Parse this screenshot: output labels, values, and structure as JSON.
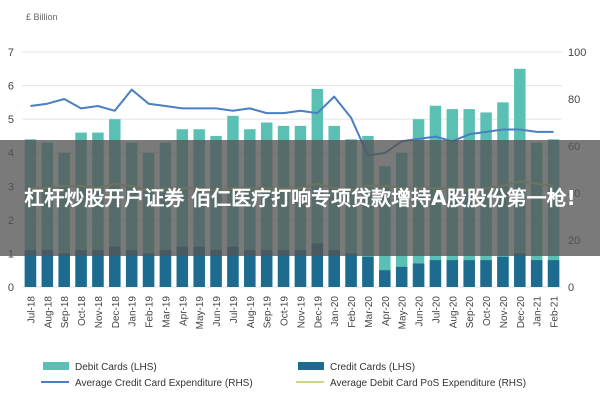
{
  "overlay": {
    "headline": "杠杆炒股开户证券 佰仁医疗打响专项贷款增持A股股份第一枪!"
  },
  "chart_data": {
    "type": "bar",
    "left_axis_unit": "£ Billion",
    "left_ticks": [
      0,
      1,
      2,
      3,
      4,
      5,
      6,
      7
    ],
    "right_ticks": [
      0,
      20,
      40,
      60,
      80,
      100
    ],
    "ylim_left": [
      0,
      7
    ],
    "ylim_right": [
      0,
      100
    ],
    "grid": true,
    "legend_position": "bottom",
    "categories": [
      "Jul-18",
      "Aug-18",
      "Sep-18",
      "Oct-18",
      "Nov-18",
      "Dec-18",
      "Jan-19",
      "Feb-19",
      "Mar-19",
      "Apr-19",
      "May-19",
      "Jun-19",
      "Jul-19",
      "Aug-19",
      "Sep-19",
      "Oct-19",
      "Nov-19",
      "Dec-19",
      "Jan-20",
      "Feb-20",
      "Mar-20",
      "Apr-20",
      "May-20",
      "Jun-20",
      "Jul-20",
      "Aug-20",
      "Sep-20",
      "Oct-20",
      "Nov-20",
      "Dec-20",
      "Jan-21",
      "Feb-21"
    ],
    "x_labels": [
      "Jul-18",
      "Sep-18",
      "Nov-18",
      "Jan-19",
      "Mar-19",
      "May-19",
      "Jul-19",
      "Sep-19",
      "Nov-19",
      "Jan-20",
      "Mar-20",
      "May-20",
      "Jul-20",
      "Sep-20",
      "Nov-20",
      "Jan-21",
      "Aug-18",
      "Oct-18",
      "Dec-18",
      "Feb-19",
      "Apr-19",
      "Jun-19",
      "Aug-19",
      "Oct-19",
      "Dec-19",
      "Feb-20",
      "Apr-20",
      "Jun-20",
      "Aug-20",
      "Oct-20",
      "Dec-20",
      "Feb-21"
    ],
    "series": [
      {
        "name": "Debit Cards (LHS)",
        "axis": "left",
        "kind": "bar",
        "color": "#5bc0b4",
        "values": [
          4.4,
          4.3,
          4.0,
          4.6,
          4.6,
          5.0,
          4.3,
          4.0,
          4.3,
          4.7,
          4.7,
          4.5,
          5.1,
          4.7,
          4.9,
          4.8,
          4.8,
          5.9,
          4.8,
          4.4,
          4.5,
          3.6,
          4.0,
          5.0,
          5.4,
          5.3,
          5.3,
          5.2,
          5.5,
          6.5,
          4.3,
          4.4
        ]
      },
      {
        "name": "Credit Cards (LHS)",
        "axis": "left",
        "kind": "bar",
        "color": "#1d6b8f",
        "values": [
          1.1,
          1.1,
          1.0,
          1.1,
          1.1,
          1.2,
          1.1,
          1.0,
          1.1,
          1.2,
          1.2,
          1.1,
          1.2,
          1.1,
          1.1,
          1.1,
          1.1,
          1.3,
          1.1,
          1.0,
          0.9,
          0.5,
          0.6,
          0.7,
          0.8,
          0.8,
          0.8,
          0.8,
          0.9,
          1.0,
          0.8,
          0.8
        ]
      },
      {
        "name": "Average Credit Card Expenditure (RHS)",
        "axis": "right",
        "kind": "line",
        "color": "#4a7fc1",
        "values": [
          77,
          78,
          80,
          76,
          77,
          75,
          84,
          78,
          77,
          76,
          76,
          76,
          75,
          76,
          74,
          74,
          75,
          74,
          81,
          72,
          56,
          57,
          62,
          63,
          64,
          62,
          65,
          66,
          67,
          67,
          66,
          66
        ]
      },
      {
        "name": "Average Debit Card PoS Expenditure (RHS)",
        "axis": "right",
        "kind": "line",
        "color": "#c9d98a",
        "values": [
          42,
          42,
          43,
          43,
          42,
          44,
          43,
          41,
          42,
          42,
          42,
          41,
          42,
          42,
          42,
          42,
          42,
          44,
          42,
          41,
          43,
          43,
          42,
          42,
          42,
          42,
          41,
          42,
          43,
          45,
          44,
          43
        ]
      }
    ]
  }
}
